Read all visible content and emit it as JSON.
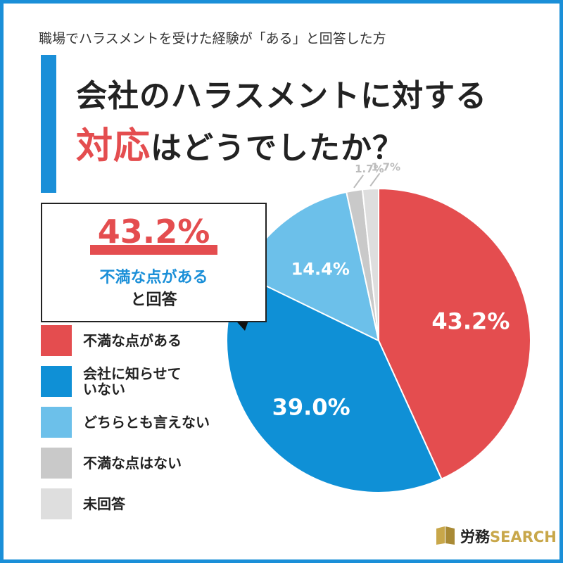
{
  "header": {
    "subtitle": "職場でハラスメントを受けた経験が「ある」と回答した方",
    "title_line1": "会社のハラスメントに対する",
    "title_accent": "対応",
    "title_line2_rest": "はどうでしたか？"
  },
  "callout": {
    "value_label": "43.2%",
    "line1": "不満な点がある",
    "line2": "と回答"
  },
  "chart_data": {
    "type": "pie",
    "categories": [
      "不満な点がある",
      "会社に知らせていない",
      "どちらとも言えない",
      "不満な点はない",
      "未回答"
    ],
    "values": [
      43.2,
      39.0,
      14.4,
      1.7,
      1.7
    ],
    "value_labels": [
      "43.2%",
      "39.0%",
      "14.4%",
      "1.7%",
      "1.7%"
    ],
    "colors": [
      "#e44d4f",
      "#0f90d6",
      "#6cc0ea",
      "#c9c9c9",
      "#dedede"
    ],
    "start_angle_deg": 0,
    "direction": "clockwise"
  },
  "legend": {
    "items": [
      {
        "label_lines": [
          "不満な点がある"
        ],
        "color": "#e44d4f"
      },
      {
        "label_lines": [
          "会社に知らせて",
          "いない"
        ],
        "color": "#0f90d6"
      },
      {
        "label_lines": [
          "どちらとも言えない"
        ],
        "color": "#6cc0ea"
      },
      {
        "label_lines": [
          "不満な点はない"
        ],
        "color": "#c9c9c9"
      },
      {
        "label_lines": [
          "未回答"
        ],
        "color": "#dedede"
      }
    ]
  },
  "logo": {
    "jp": "労務",
    "en": "SEARCH"
  }
}
